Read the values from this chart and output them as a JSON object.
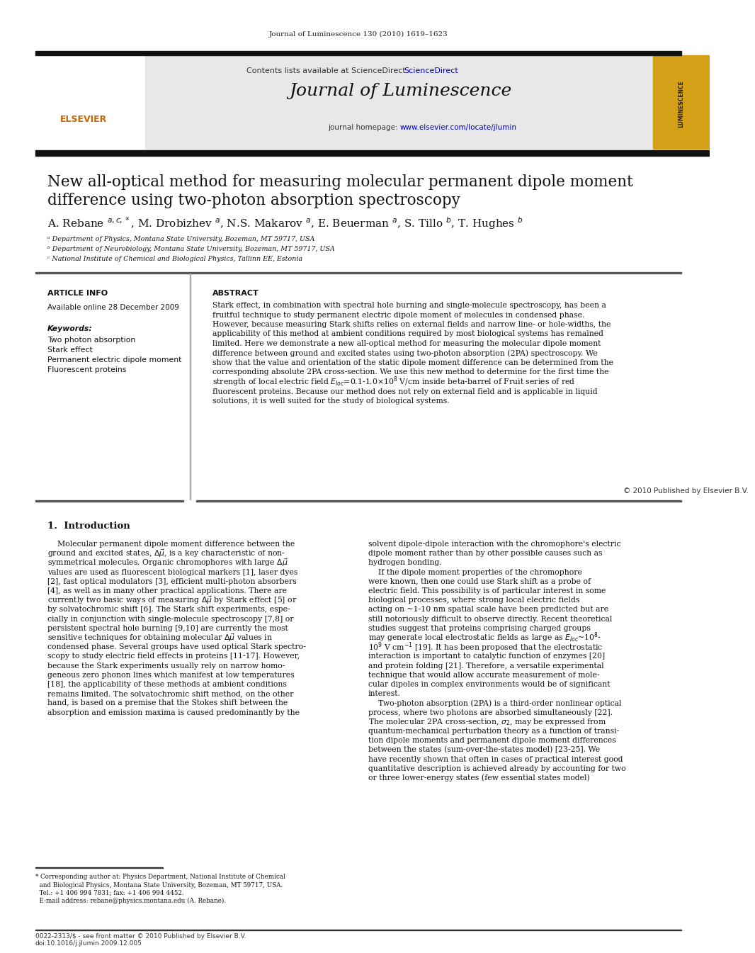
{
  "journal_header": "Journal of Luminescence 130 (2010) 1619–1623",
  "contents_line": "Contents lists available at ScienceDirect",
  "journal_name": "Journal of Luminescence",
  "title_line1": "New all-optical method for measuring molecular permanent dipole moment",
  "title_line2": "difference using two-photon absorption spectroscopy",
  "affil_a": "ᵃ Department of Physics, Montana State University, Bozeman, MT 59717, USA",
  "affil_b": "ᵇ Department of Neurobiology, Montana State University, Bozeman, MT 59717, USA",
  "affil_c": "ᶜ National Institute of Chemical and Biological Physics, Tallinn EE, Estonia",
  "article_info_header": "ARTICLE INFO",
  "abstract_header": "ABSTRACT",
  "available_online": "Available online 28 December 2009",
  "keywords_header": "Keywords:",
  "keyword1": "Two photon absorption",
  "keyword2": "Stark effect",
  "keyword3": "Permanent electric dipole moment",
  "keyword4": "Fluorescent proteins",
  "copyright": "© 2010 Published by Elsevier B.V.",
  "section1_header": "1.  Introduction",
  "footnote_line1": "* Corresponding author at: Physics Department, National Institute of Chemical",
  "footnote_line2": "  and Biological Physics, Montana State University, Bozeman, MT 59717, USA.",
  "footnote_line3": "  Tel.: +1 406 994 7831; fax: +1 406 994 4452.",
  "footnote_line4": "  E-mail address: rebane@physics.montana.edu (A. Rebane).",
  "footer_line1": "0022-2313/$ - see front matter © 2010 Published by Elsevier B.V.",
  "footer_line2": "doi:10.1016/j.jlumin.2009.12.005",
  "bg_color": "#ffffff",
  "header_bg": "#e8e8e8",
  "link_color": "#0000CC",
  "text_color": "#000000",
  "title_font_size": 15.5,
  "body_font_size": 7.8
}
